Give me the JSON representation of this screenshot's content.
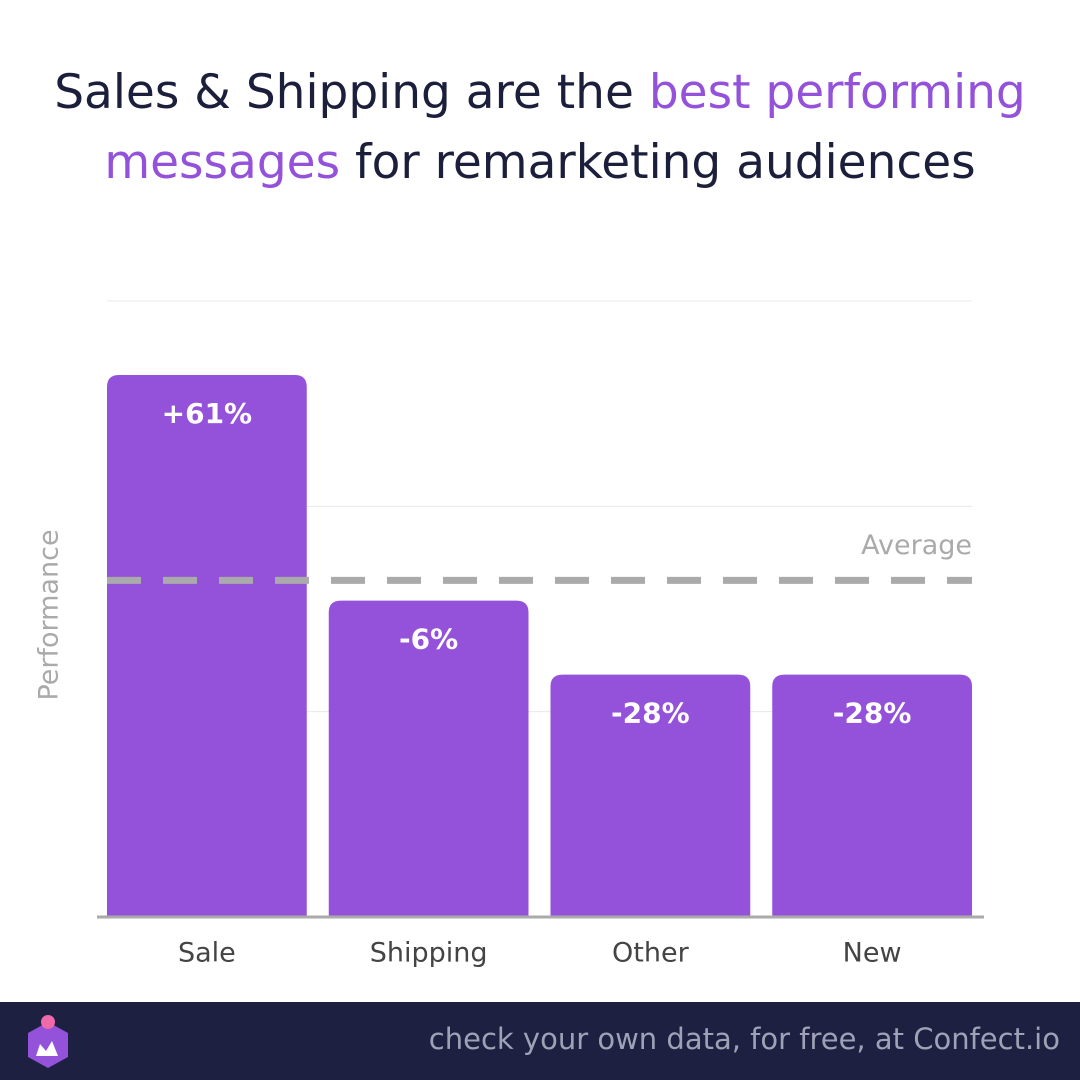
{
  "chart_data": {
    "type": "bar",
    "title": {
      "before": "Sales & Shipping are the ",
      "highlight": "best performing messages",
      "after": " for remarketing audiences"
    },
    "y_label": "Performance",
    "categories": [
      "Sale",
      "Shipping",
      "Other",
      "New"
    ],
    "values": [
      61,
      -6,
      -28,
      -28
    ],
    "value_labels": [
      "+61%",
      "-6%",
      "-28%",
      "-28%"
    ],
    "color": "#9452db",
    "ylim": [
      -100,
      83
    ],
    "average_line": {
      "value": 0,
      "label": "Average"
    }
  },
  "footer": {
    "text": "check your own data, for free, at Confect.io"
  }
}
